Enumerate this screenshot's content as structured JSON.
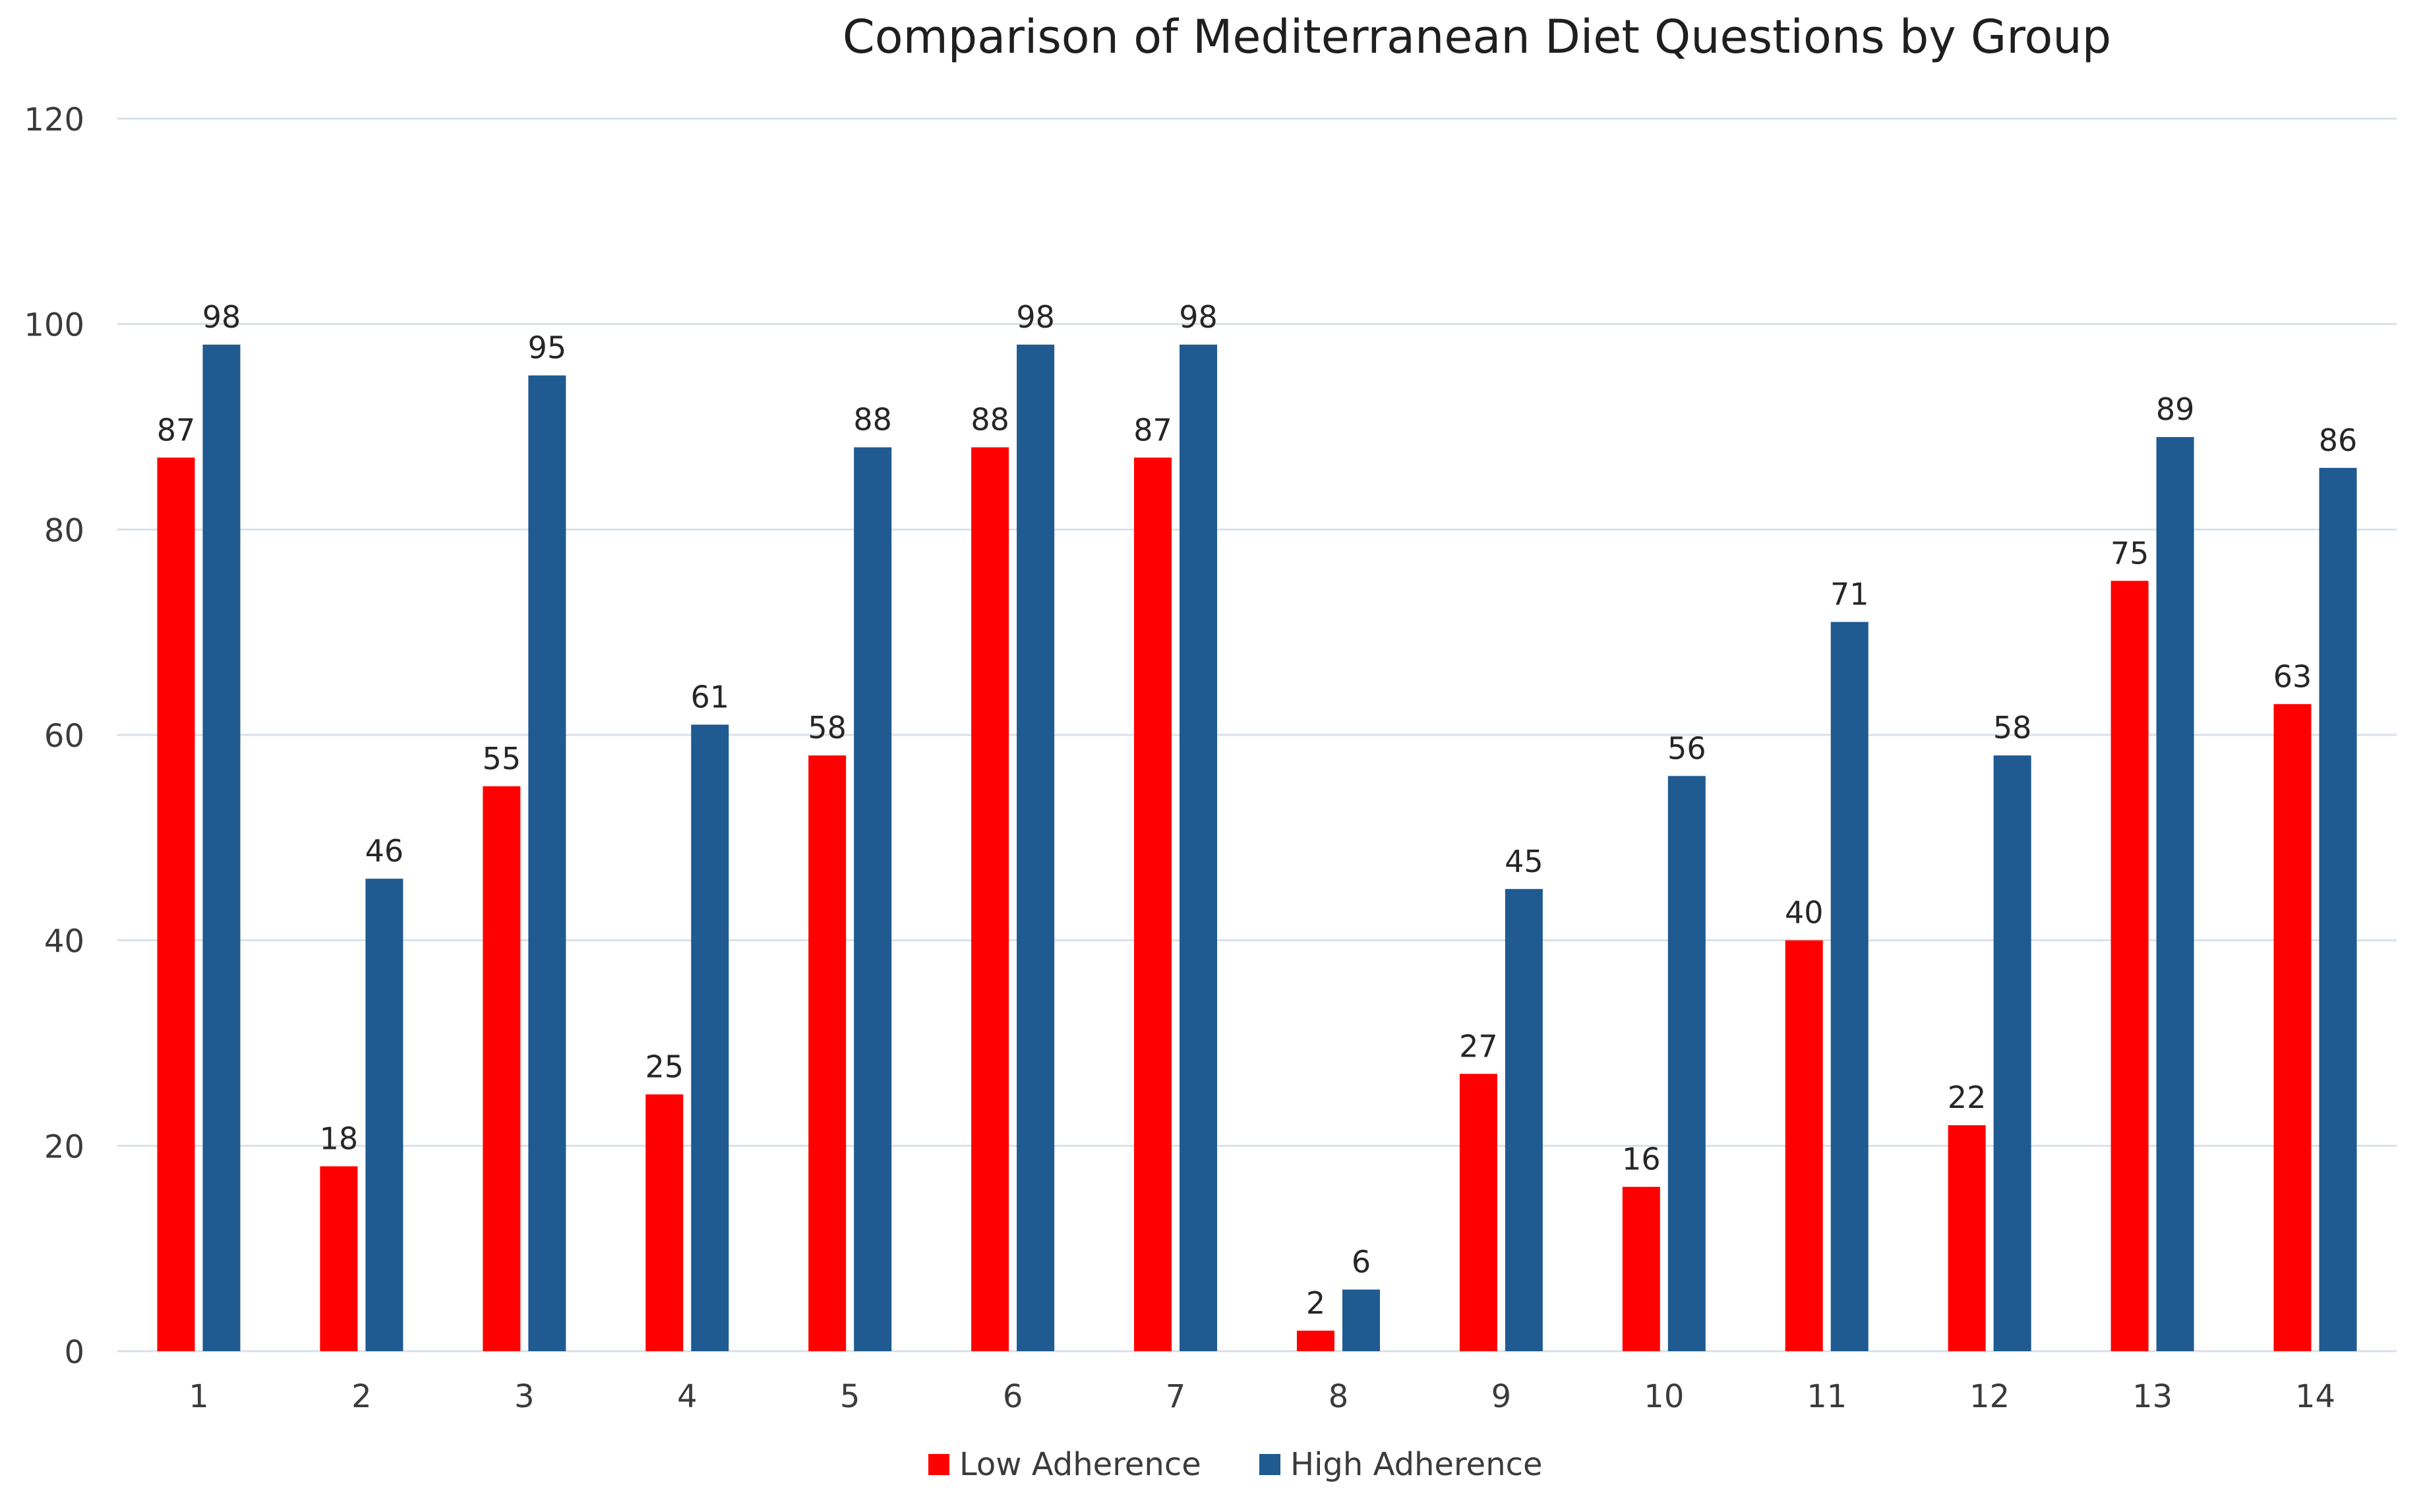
{
  "chart_data": {
    "type": "bar",
    "title": "Comparison of Mediterranean Diet Questions by Group",
    "xlabel": "",
    "ylabel": "",
    "categories": [
      "1",
      "2",
      "3",
      "4",
      "5",
      "6",
      "7",
      "8",
      "9",
      "10",
      "11",
      "12",
      "13",
      "14"
    ],
    "series": [
      {
        "name": "Low Adherence",
        "color": "#ff0000",
        "values": [
          87,
          18,
          55,
          25,
          58,
          88,
          87,
          2,
          27,
          16,
          40,
          22,
          75,
          63
        ]
      },
      {
        "name": "High Adherence",
        "color": "#1f5a91",
        "values": [
          98,
          46,
          95,
          61,
          88,
          98,
          98,
          6,
          45,
          56,
          71,
          58,
          89,
          86
        ]
      }
    ],
    "ylim": [
      0,
      120
    ],
    "yticks": [
      0,
      20,
      40,
      60,
      80,
      100,
      120
    ],
    "grid": true,
    "legend": "bottom-center",
    "data_labels": true
  }
}
